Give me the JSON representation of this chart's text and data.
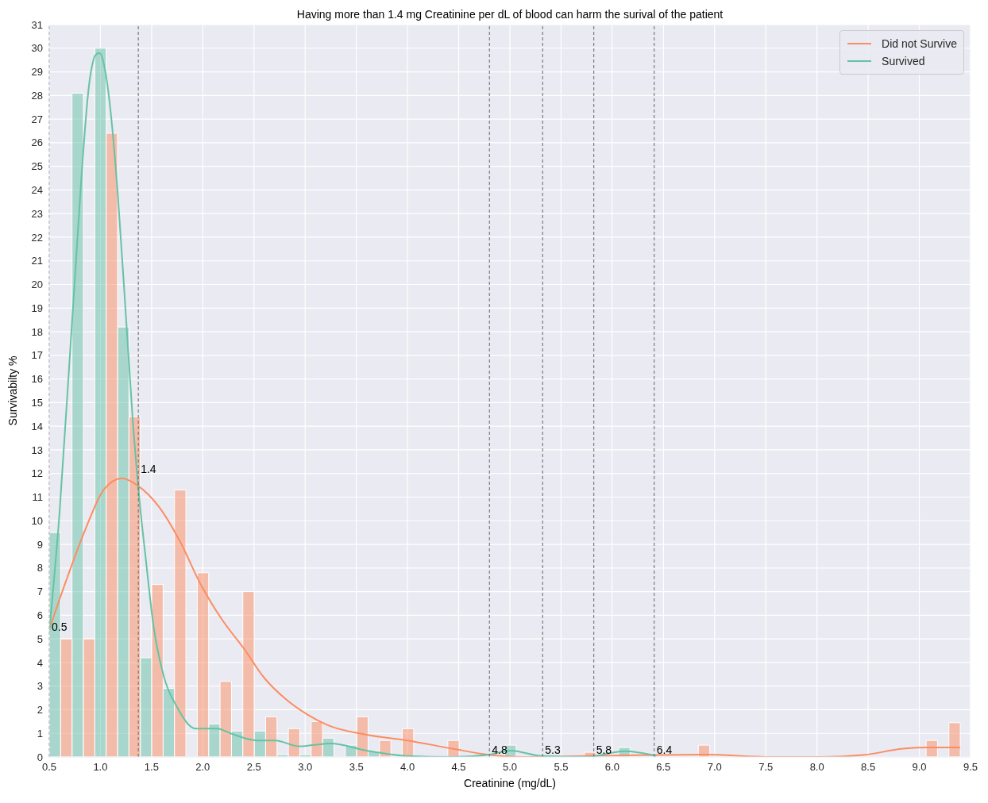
{
  "chart_data": {
    "type": "histogram",
    "title": "Having more than 1.4 mg Creatinine per dL of blood can harm the surival of the patient",
    "xlabel": "Creatinine (mg/dL)",
    "ylabel": "Survivabilty %",
    "bins": [
      0.5,
      0.7225,
      0.945,
      1.1675,
      1.39,
      1.6125,
      1.835,
      2.0575,
      2.28,
      2.5025,
      2.725,
      2.9475,
      3.17,
      3.3925,
      3.615,
      3.8375,
      4.06,
      4.2825,
      4.505,
      4.7275,
      4.95,
      5.1725,
      5.395,
      5.6175,
      5.84,
      6.0625,
      6.285,
      6.5075,
      6.73,
      6.9525,
      7.175,
      7.3975,
      7.62,
      7.8425,
      8.065,
      8.2875,
      8.51,
      8.7325,
      8.955,
      9.1775,
      9.4
    ],
    "series": [
      {
        "type": "histogram",
        "color": "#66c2a5",
        "values": [
          9.5,
          28.1,
          30.0,
          18.2,
          4.2,
          2.9,
          0,
          1.4,
          1.1,
          1.1,
          0.1,
          0.1,
          0.8,
          0.5,
          0.25,
          0,
          0,
          0,
          0,
          0,
          0.5,
          0,
          0,
          0,
          0,
          0.4,
          0,
          0,
          0,
          0,
          0,
          0,
          0,
          0,
          0,
          0,
          0,
          0,
          0,
          0
        ]
      },
      {
        "type": "histogram",
        "color": "#fc8d62",
        "values": [
          5.0,
          5.0,
          26.4,
          14.4,
          7.3,
          11.3,
          7.8,
          3.2,
          7.0,
          1.7,
          1.2,
          1.5,
          0,
          1.7,
          0.7,
          1.2,
          0,
          0.7,
          0,
          0,
          0,
          0,
          0,
          0.2,
          0,
          0,
          0,
          0,
          0.5,
          0,
          0,
          0,
          0,
          0,
          0,
          0,
          0,
          0,
          0.7,
          1.45
        ]
      },
      {
        "type": "line",
        "name": "Did not Survive",
        "color": "#fc8d62",
        "x": [
          0.5,
          0.66,
          0.85,
          1.03,
          1.21,
          1.36,
          1.57,
          1.78,
          1.98,
          2.19,
          2.4,
          2.6,
          2.81,
          3.02,
          3.22,
          3.59,
          4.0,
          4.44,
          4.78,
          5.09,
          5.86,
          6.9,
          7.55,
          8.06,
          8.45,
          8.84,
          9.1,
          9.4
        ],
        "values": [
          5.4,
          7.4,
          9.6,
          11.3,
          11.8,
          11.5,
          10.6,
          9.1,
          7.3,
          5.8,
          4.6,
          3.35,
          2.45,
          1.8,
          1.35,
          0.95,
          0.7,
          0.35,
          0.1,
          0,
          0.05,
          0.1,
          0,
          0,
          0.08,
          0.35,
          0.4,
          0.4
        ]
      },
      {
        "type": "line",
        "name": "Survived",
        "color": "#66c2a5",
        "x": [
          0.5,
          0.6,
          0.73,
          0.9,
          0.95,
          0.99,
          1.04,
          1.09,
          1.17,
          1.25,
          1.32,
          1.39,
          1.44,
          1.52,
          1.62,
          1.75,
          1.93,
          2.14,
          2.27,
          2.53,
          2.71,
          2.94,
          3.07,
          3.25,
          3.6,
          4.0,
          4.44,
          4.8,
          5.0,
          5.32,
          5.74,
          6.12,
          6.43
        ],
        "values": [
          5.3,
          10.3,
          18.9,
          28.8,
          29.7,
          29.8,
          29.2,
          27.7,
          23.8,
          18.6,
          14.0,
          10.5,
          8.5,
          5.5,
          3.4,
          2.1,
          1.2,
          1.2,
          1.0,
          0.7,
          0.7,
          0.45,
          0.5,
          0.57,
          0.27,
          0.04,
          0,
          0.1,
          0.27,
          0.04,
          0,
          0.24,
          0.04
        ]
      }
    ],
    "xlim": [
      0.5,
      9.5
    ],
    "xticks": [
      0.5,
      {
        "value": 1,
        "label": "1.0"
      },
      1.5,
      {
        "value": 2,
        "label": "2.0"
      },
      2.5,
      {
        "value": 3,
        "label": "3.0"
      },
      3.5,
      {
        "value": 4,
        "label": "4.0"
      },
      4.5,
      {
        "value": 5,
        "label": "5.0"
      },
      5.5,
      {
        "value": 6,
        "label": "6.0"
      },
      6.5,
      {
        "value": 7,
        "label": "7.0"
      },
      7.5,
      {
        "value": 8,
        "label": "8.0"
      },
      8.5,
      {
        "value": 9,
        "label": "9.0"
      },
      9.5
    ],
    "ylim": [
      0,
      31
    ],
    "yticks": [
      0,
      1,
      2,
      3,
      4,
      5,
      6,
      7,
      8,
      9,
      10,
      11,
      12,
      13,
      14,
      15,
      16,
      17,
      18,
      19,
      20,
      21,
      22,
      23,
      24,
      25,
      26,
      27,
      28,
      29,
      30,
      31
    ],
    "grid": true,
    "legend": "top right",
    "ref_lines": [
      {
        "axis": "x",
        "value": 0.5,
        "color": "#666666",
        "line_style": "dashed"
      },
      {
        "axis": "x",
        "value": 1.37,
        "color": "#666666",
        "line_style": "dashed"
      },
      {
        "axis": "x",
        "value": 4.8,
        "color": "#666666",
        "line_style": "dashed"
      },
      {
        "axis": "x",
        "value": 5.32,
        "color": "#666666",
        "line_style": "dashed"
      },
      {
        "axis": "x",
        "value": 5.82,
        "color": "#666666",
        "line_style": "dashed"
      },
      {
        "axis": "x",
        "value": 6.41,
        "color": "#666666",
        "line_style": "dashed"
      }
    ],
    "annotations": [
      {
        "text": "0.5",
        "x": 0.5,
        "y": 5.2
      },
      {
        "text": "1.4",
        "x": 1.37,
        "y": 11.9
      },
      {
        "text": "4.8",
        "x": 4.8,
        "y": 0
      },
      {
        "text": "5.3",
        "x": 5.32,
        "y": 0
      },
      {
        "text": "5.8",
        "x": 5.82,
        "y": 0
      },
      {
        "text": "6.4",
        "x": 6.41,
        "y": 0
      }
    ]
  }
}
